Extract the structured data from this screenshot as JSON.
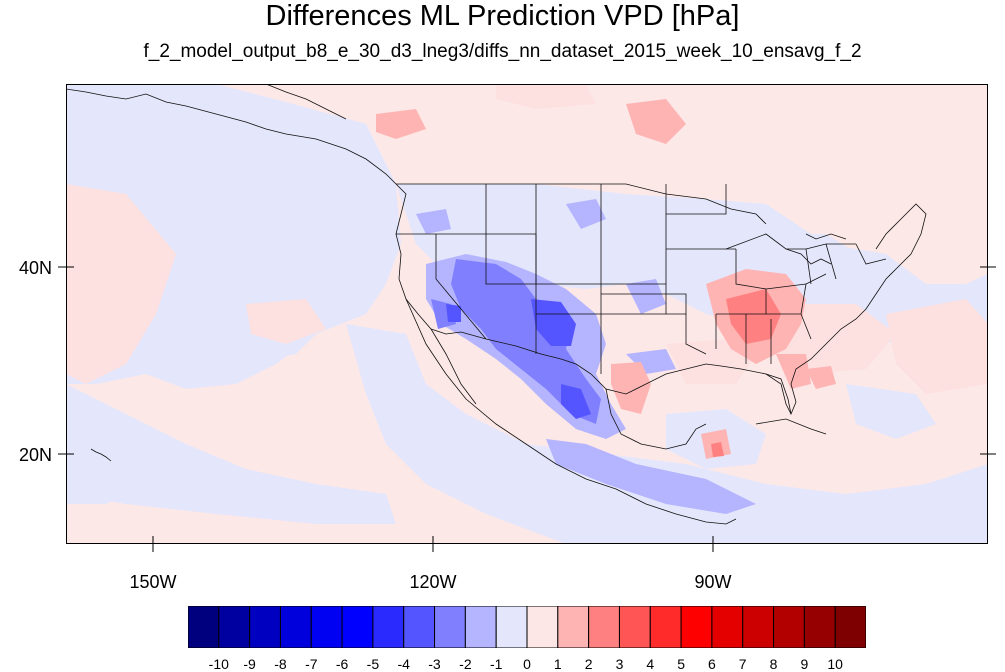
{
  "title": "Differences ML Prediction VPD [hPa]",
  "subtitle": "f_2_model_output_b8_e_30_d3_lneg3/diffs_nn_dataset_2015_week_10_ensavg_f_2",
  "lat_labels": [
    "40N",
    "20N"
  ],
  "lon_labels": [
    "150W",
    "120W",
    "90W"
  ],
  "colorbar": {
    "labels": [
      "-10",
      "-9",
      "-8",
      "-7",
      "-6",
      "-5",
      "-4",
      "-3",
      "-2",
      "-1",
      "0",
      "1",
      "2",
      "3",
      "4",
      "5",
      "6",
      "7",
      "8",
      "9",
      "10"
    ],
    "colors": [
      "#00007f",
      "#0000a0",
      "#0000c0",
      "#0000dd",
      "#0000f2",
      "#0000ff",
      "#2a2aff",
      "#5555ff",
      "#8080ff",
      "#b4b4ff",
      "#e4e6fb",
      "#fde6e6",
      "#ffb4b4",
      "#ff8080",
      "#ff5555",
      "#ff2a2a",
      "#ff0000",
      "#e50000",
      "#cc0000",
      "#b20000",
      "#960000",
      "#7f0000"
    ]
  },
  "map": {
    "background_color": "#fde8e8",
    "ocean_negative_color": "#e4e6fb",
    "projection": "cylindrical-equidistant",
    "lon_range": [
      -159.5,
      -61
    ],
    "lat_range": [
      11,
      60
    ]
  }
}
